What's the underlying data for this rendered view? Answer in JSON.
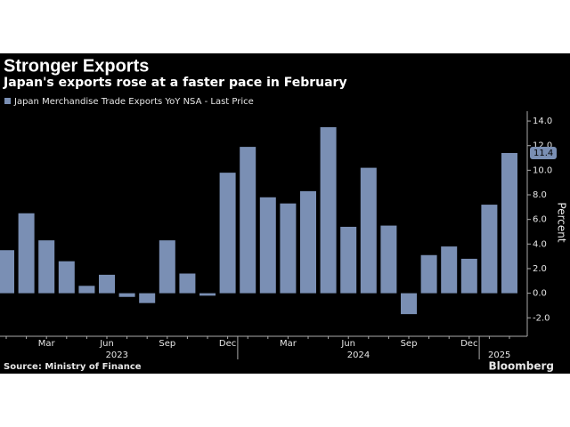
{
  "chart_data": {
    "type": "bar",
    "title": "Stronger Exports",
    "subtitle": "Japan's exports rose at a faster pace in February",
    "y_label": "Percent",
    "source": "Source: Ministry of Finance",
    "brand": "Bloomberg",
    "categories": [
      null,
      null,
      "Mar",
      null,
      null,
      "Jun",
      null,
      null,
      "Sep",
      null,
      null,
      "Dec",
      null,
      null,
      "Mar",
      null,
      null,
      "Jun",
      null,
      null,
      "Sep",
      null,
      null,
      "Dec",
      null,
      null
    ],
    "x_years": [
      "2023",
      "2024",
      "2025"
    ],
    "series": [
      {
        "name": "Japan Merchandise Trade Exports YoY NSA - Last Price",
        "color": "#7a8fb4",
        "values": [
          3.5,
          6.5,
          4.3,
          2.6,
          0.6,
          1.5,
          -0.3,
          -0.8,
          4.3,
          1.6,
          -0.2,
          9.8,
          11.9,
          7.8,
          7.3,
          8.3,
          13.5,
          5.4,
          10.2,
          5.5,
          -1.7,
          3.1,
          3.8,
          2.8,
          7.2,
          11.4
        ]
      }
    ],
    "ylim": [
      -3.5,
      14.8
    ],
    "yticks": [
      {
        "value": -2,
        "label": "-2.0"
      },
      {
        "value": 0,
        "label": "0.0"
      },
      {
        "value": 2,
        "label": "2.0"
      },
      {
        "value": 4,
        "label": "4.0"
      },
      {
        "value": 6,
        "label": "6.0"
      },
      {
        "value": 8,
        "label": "8.0"
      },
      {
        "value": 10,
        "label": "10.0"
      },
      {
        "value": 12,
        "label": "12.0"
      },
      {
        "value": 14,
        "label": "14.0"
      }
    ],
    "grid": false
  }
}
